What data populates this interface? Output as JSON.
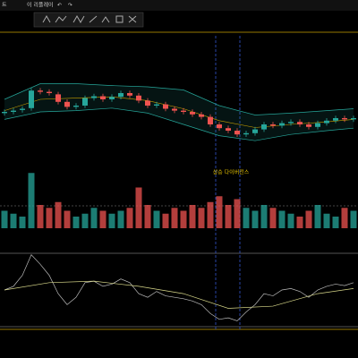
{
  "toolbar": {
    "items": [
      "트",
      "이 리플레이"
    ]
  },
  "chart_data": {
    "type": "candlestick",
    "annotation": "상승 다이버전스",
    "up_color": "#26a69a",
    "down_color": "#ef5350",
    "price": {
      "ylim": [
        0,
        100
      ],
      "open": [
        48,
        50,
        53,
        56,
        84,
        82,
        78,
        66,
        58,
        60,
        72,
        75,
        70,
        74,
        80,
        76,
        68,
        60,
        62,
        55,
        52,
        50,
        46,
        42,
        30,
        24,
        20,
        14,
        16,
        22,
        30,
        28,
        32,
        34,
        30,
        26,
        32,
        36,
        40,
        38
      ],
      "close": [
        50,
        52,
        55,
        84,
        82,
        80,
        66,
        58,
        60,
        72,
        75,
        70,
        74,
        80,
        76,
        68,
        60,
        62,
        55,
        52,
        50,
        46,
        42,
        30,
        24,
        20,
        14,
        16,
        22,
        30,
        28,
        32,
        34,
        30,
        26,
        32,
        36,
        40,
        38,
        40
      ],
      "high": [
        54,
        56,
        59,
        88,
        88,
        86,
        82,
        70,
        64,
        76,
        79,
        79,
        78,
        84,
        84,
        80,
        72,
        66,
        66,
        59,
        56,
        54,
        50,
        46,
        34,
        28,
        24,
        20,
        26,
        34,
        34,
        36,
        38,
        38,
        34,
        36,
        40,
        44,
        44,
        44
      ],
      "low": [
        44,
        46,
        49,
        52,
        78,
        76,
        62,
        54,
        54,
        56,
        68,
        66,
        66,
        70,
        72,
        64,
        56,
        56,
        51,
        48,
        46,
        42,
        38,
        26,
        20,
        16,
        10,
        10,
        12,
        18,
        24,
        24,
        28,
        26,
        22,
        22,
        28,
        32,
        34,
        34
      ]
    },
    "bollinger": {
      "x": [
        0,
        4,
        8,
        12,
        16,
        20,
        24,
        28,
        32,
        36,
        39
      ],
      "upper": [
        70,
        95,
        95,
        92,
        90,
        85,
        60,
        45,
        48,
        52,
        55
      ],
      "mid": [
        52,
        70,
        72,
        74,
        68,
        55,
        36,
        25,
        30,
        34,
        38
      ],
      "lower": [
        38,
        50,
        52,
        56,
        48,
        30,
        12,
        4,
        14,
        20,
        24
      ]
    },
    "volume": {
      "ylim": [
        0,
        100
      ],
      "values": [
        30,
        25,
        20,
        95,
        40,
        35,
        45,
        30,
        20,
        25,
        35,
        30,
        25,
        30,
        35,
        70,
        40,
        30,
        25,
        35,
        30,
        40,
        35,
        45,
        55,
        40,
        50,
        35,
        30,
        40,
        35,
        30,
        25,
        20,
        30,
        40,
        25,
        20,
        35,
        30
      ]
    },
    "rsi": {
      "ylim": [
        0,
        100
      ],
      "values": [
        50,
        55,
        70,
        98,
        85,
        70,
        45,
        30,
        40,
        60,
        62,
        55,
        58,
        65,
        60,
        45,
        40,
        48,
        42,
        40,
        38,
        35,
        30,
        18,
        10,
        12,
        8,
        20,
        30,
        45,
        42,
        50,
        52,
        48,
        40,
        50,
        55,
        58,
        56,
        60
      ],
      "signal_x": [
        0,
        5,
        10,
        15,
        20,
        25,
        30,
        35,
        39
      ],
      "signal": [
        50,
        60,
        62,
        55,
        45,
        25,
        28,
        45,
        52
      ]
    }
  }
}
